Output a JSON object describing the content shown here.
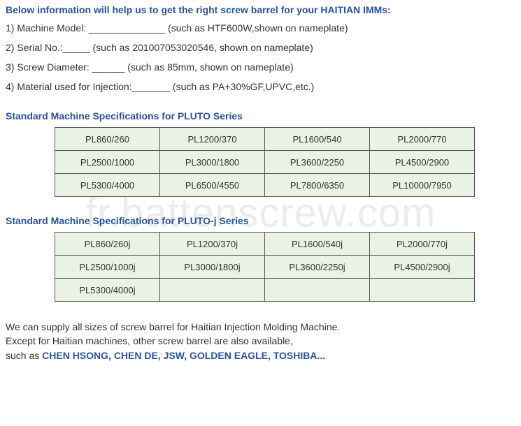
{
  "watermark": "fr.battenscrew.com",
  "intro_title": "Below information will help us to get the right screw barrel for your HAITIAN IMMs:",
  "info_lines": [
    "1) Machine Model: ______________   (such as HTF600W,shown on nameplate)",
    "2) Serial No.:_____          (such as 201007053020546, shown on nameplate)",
    "3) Screw Diameter: ______  (such as 85mm, shown on nameplate)",
    "4) Material used for Injection:_______         (such as PA+30%GF,UPVC,etc.)"
  ],
  "pluto": {
    "title": "Standard Machine Specifications for PLUTO Series",
    "rows": [
      [
        "PL860/260",
        "PL1200/370",
        "PL1600/540",
        "PL2000/770"
      ],
      [
        "PL2500/1000",
        "PL3000/1800",
        "PL3600/2250",
        "PL4500/2900"
      ],
      [
        "PL5300/4000",
        "PL6500/4550",
        "PL7800/6350",
        "PL10000/7950"
      ]
    ]
  },
  "plutoj": {
    "title": "Standard Machine Specifications for PLUTO-j Series",
    "rows": [
      [
        "PL860/260j",
        "PL1200/370j",
        "PL1600/540j",
        "PL2000/770j"
      ],
      [
        "PL2500/1000j",
        "PL3000/1800j",
        "PL3600/2250j",
        "PL4500/2900j"
      ],
      [
        "PL5300/4000j",
        "",
        "",
        ""
      ]
    ]
  },
  "footer_line1": "We can supply all sizes of screw barrel for Haitian Injection Molding Machine.",
  "footer_line2": "Except for Haitian machines, other screw barrel are also available,",
  "footer_line3_prefix": "such as ",
  "footer_brands": "CHEN HSONG, CHEN DE, JSW, GOLDEN EAGLE, TOSHIBA...",
  "colors": {
    "heading": "#2a52a0",
    "text": "#333333",
    "cell_bg": "#e9f2e3",
    "cell_border": "#555555",
    "background": "#ffffff"
  }
}
